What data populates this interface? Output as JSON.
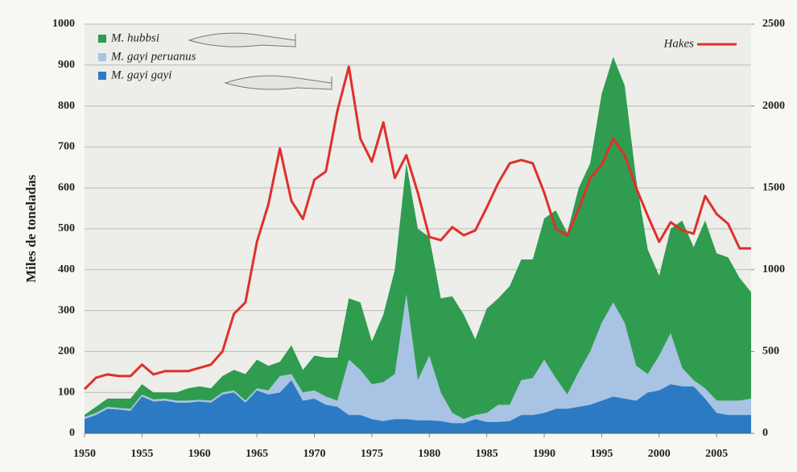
{
  "chart_data": {
    "type": "area",
    "y_label": "Miles de toneladas",
    "x": [
      1950,
      1951,
      1952,
      1953,
      1954,
      1955,
      1956,
      1957,
      1958,
      1959,
      1960,
      1961,
      1962,
      1963,
      1964,
      1965,
      1966,
      1967,
      1968,
      1969,
      1970,
      1971,
      1972,
      1973,
      1974,
      1975,
      1976,
      1977,
      1978,
      1979,
      1980,
      1981,
      1982,
      1983,
      1984,
      1985,
      1986,
      1987,
      1988,
      1989,
      1990,
      1991,
      1992,
      1993,
      1994,
      1995,
      1996,
      1997,
      1998,
      1999,
      2000,
      2001,
      2002,
      2003,
      2004,
      2005,
      2006,
      2007,
      2008
    ],
    "xlim": [
      1950,
      2008
    ],
    "xticks": [
      1950,
      1955,
      1960,
      1965,
      1970,
      1975,
      1980,
      1985,
      1990,
      1995,
      2000,
      2005
    ],
    "ylim": [
      0,
      1000
    ],
    "yticks": [
      0,
      100,
      200,
      300,
      400,
      500,
      600,
      700,
      800,
      900,
      1000
    ],
    "y2lim": [
      0,
      2500
    ],
    "y2ticks": [
      0,
      500,
      1000,
      1500,
      2000,
      2500
    ],
    "grid": true,
    "stacked": true,
    "series": [
      {
        "name": "M. hubbsi",
        "color": "#2f9c50",
        "values": [
          5,
          15,
          20,
          23,
          25,
          25,
          17,
          15,
          20,
          30,
          33,
          30,
          40,
          50,
          65,
          70,
          60,
          35,
          70,
          55,
          85,
          95,
          105,
          150,
          165,
          105,
          165,
          255,
          320,
          370,
          290,
          230,
          285,
          255,
          185,
          255,
          260,
          290,
          295,
          290,
          345,
          410,
          395,
          450,
          460,
          560,
          600,
          580,
          455,
          305,
          195,
          255,
          360,
          325,
          410,
          360,
          350,
          300,
          260
        ]
      },
      {
        "name": "M. gayi peruanus",
        "color": "#a8c3e3",
        "values": [
          5,
          5,
          5,
          4,
          5,
          5,
          5,
          5,
          5,
          5,
          4,
          5,
          5,
          5,
          5,
          5,
          10,
          40,
          15,
          20,
          20,
          20,
          15,
          135,
          110,
          85,
          95,
          110,
          305,
          98,
          158,
          70,
          25,
          10,
          10,
          22,
          42,
          40,
          85,
          90,
          130,
          75,
          35,
          85,
          130,
          190,
          230,
          185,
          85,
          45,
          85,
          125,
          45,
          15,
          25,
          30,
          35,
          35,
          40
        ]
      },
      {
        "name": "M. gayi gayi",
        "color": "#2b7ac3",
        "values": [
          35,
          45,
          60,
          58,
          55,
          90,
          78,
          80,
          75,
          75,
          78,
          75,
          95,
          100,
          75,
          105,
          95,
          100,
          130,
          80,
          85,
          70,
          65,
          45,
          45,
          35,
          30,
          35,
          35,
          32,
          32,
          30,
          25,
          25,
          35,
          28,
          28,
          30,
          45,
          45,
          50,
          60,
          60,
          65,
          70,
          80,
          90,
          85,
          80,
          100,
          105,
          120,
          115,
          115,
          85,
          50,
          45,
          45,
          45
        ]
      },
      {
        "name": "Hakes",
        "color": "#e0302a",
        "type": "line",
        "axis": "y2",
        "values": [
          270,
          340,
          360,
          350,
          350,
          420,
          360,
          380,
          380,
          380,
          400,
          420,
          500,
          730,
          800,
          1170,
          1400,
          1740,
          1420,
          1310,
          1550,
          1600,
          1970,
          2240,
          1800,
          1660,
          1900,
          1560,
          1700,
          1470,
          1200,
          1180,
          1260,
          1210,
          1240,
          1380,
          1530,
          1650,
          1670,
          1650,
          1470,
          1250,
          1210,
          1370,
          1560,
          1640,
          1800,
          1700,
          1500,
          1330,
          1170,
          1290,
          1240,
          1220,
          1450,
          1340,
          1280,
          1130,
          1130
        ]
      }
    ]
  }
}
